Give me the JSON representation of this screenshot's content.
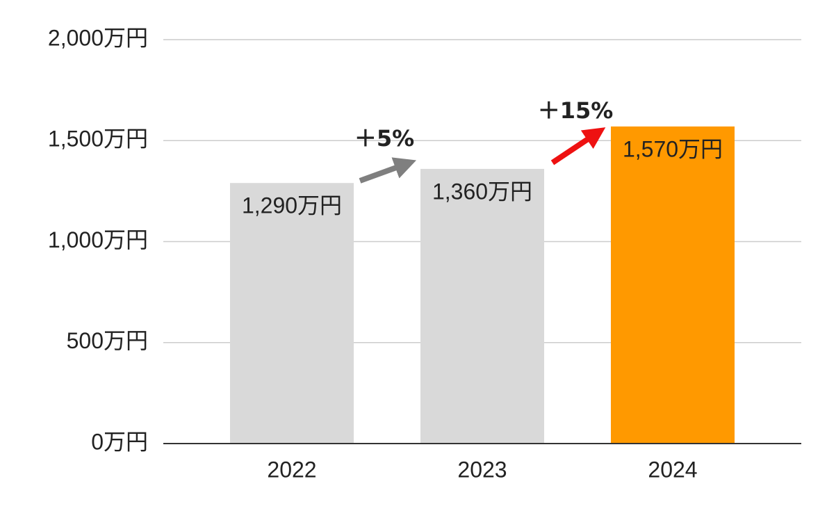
{
  "chart_data": {
    "type": "bar",
    "categories": [
      "2022",
      "2023",
      "2024"
    ],
    "values": [
      1290,
      1360,
      1570
    ],
    "value_labels": [
      "1,290万円",
      "1,360万円",
      "1,570万円"
    ],
    "colors": [
      "#d9d9d9",
      "#d9d9d9",
      "#ff9900"
    ],
    "ylim": [
      0,
      2000
    ],
    "yticks": [
      {
        "value": 0,
        "label": "0万円"
      },
      {
        "value": 500,
        "label": "500万円"
      },
      {
        "value": 1000,
        "label": "1,000万円"
      },
      {
        "value": 1500,
        "label": "1,500万円"
      },
      {
        "value": 2000,
        "label": "2,000万円"
      }
    ],
    "grid": true,
    "annotations": [
      {
        "text": "＋5%",
        "color": "#7f7f7f"
      },
      {
        "text": "＋15%",
        "color": "#ee1111"
      }
    ]
  }
}
